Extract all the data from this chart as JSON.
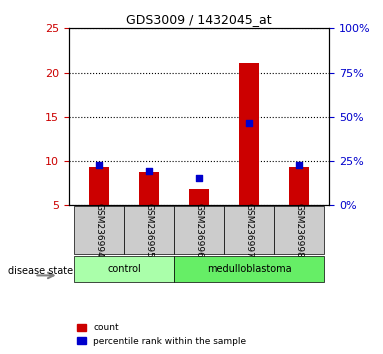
{
  "title": "GDS3009 / 1432045_at",
  "samples": [
    "GSM236994",
    "GSM236995",
    "GSM236996",
    "GSM236997",
    "GSM236998"
  ],
  "red_values": [
    9.3,
    8.8,
    6.8,
    21.1,
    9.3
  ],
  "blue_values": [
    9.5,
    8.9,
    8.1,
    14.3,
    9.5
  ],
  "blue_percentile": [
    23,
    23,
    20,
    50,
    23
  ],
  "baseline": 5.0,
  "ylim_left": [
    5,
    25
  ],
  "ylim_right": [
    0,
    100
  ],
  "yticks_left": [
    5,
    10,
    15,
    20,
    25
  ],
  "yticks_right": [
    0,
    25,
    50,
    75,
    100
  ],
  "groups": [
    {
      "label": "control",
      "samples": [
        0,
        1
      ],
      "color": "#90EE90"
    },
    {
      "label": "medulloblastoma",
      "samples": [
        2,
        3,
        4
      ],
      "color": "#66DD66"
    }
  ],
  "disease_state_label": "disease state",
  "bar_color": "#CC0000",
  "blue_color": "#0000CC",
  "left_axis_color": "#CC0000",
  "right_axis_color": "#0000CC",
  "grid_color": "#000000",
  "bg_color": "#FFFFFF",
  "sample_bg_color": "#CCCCCC",
  "control_color": "#AAFFAA",
  "medulloblastoma_color": "#66EE66"
}
